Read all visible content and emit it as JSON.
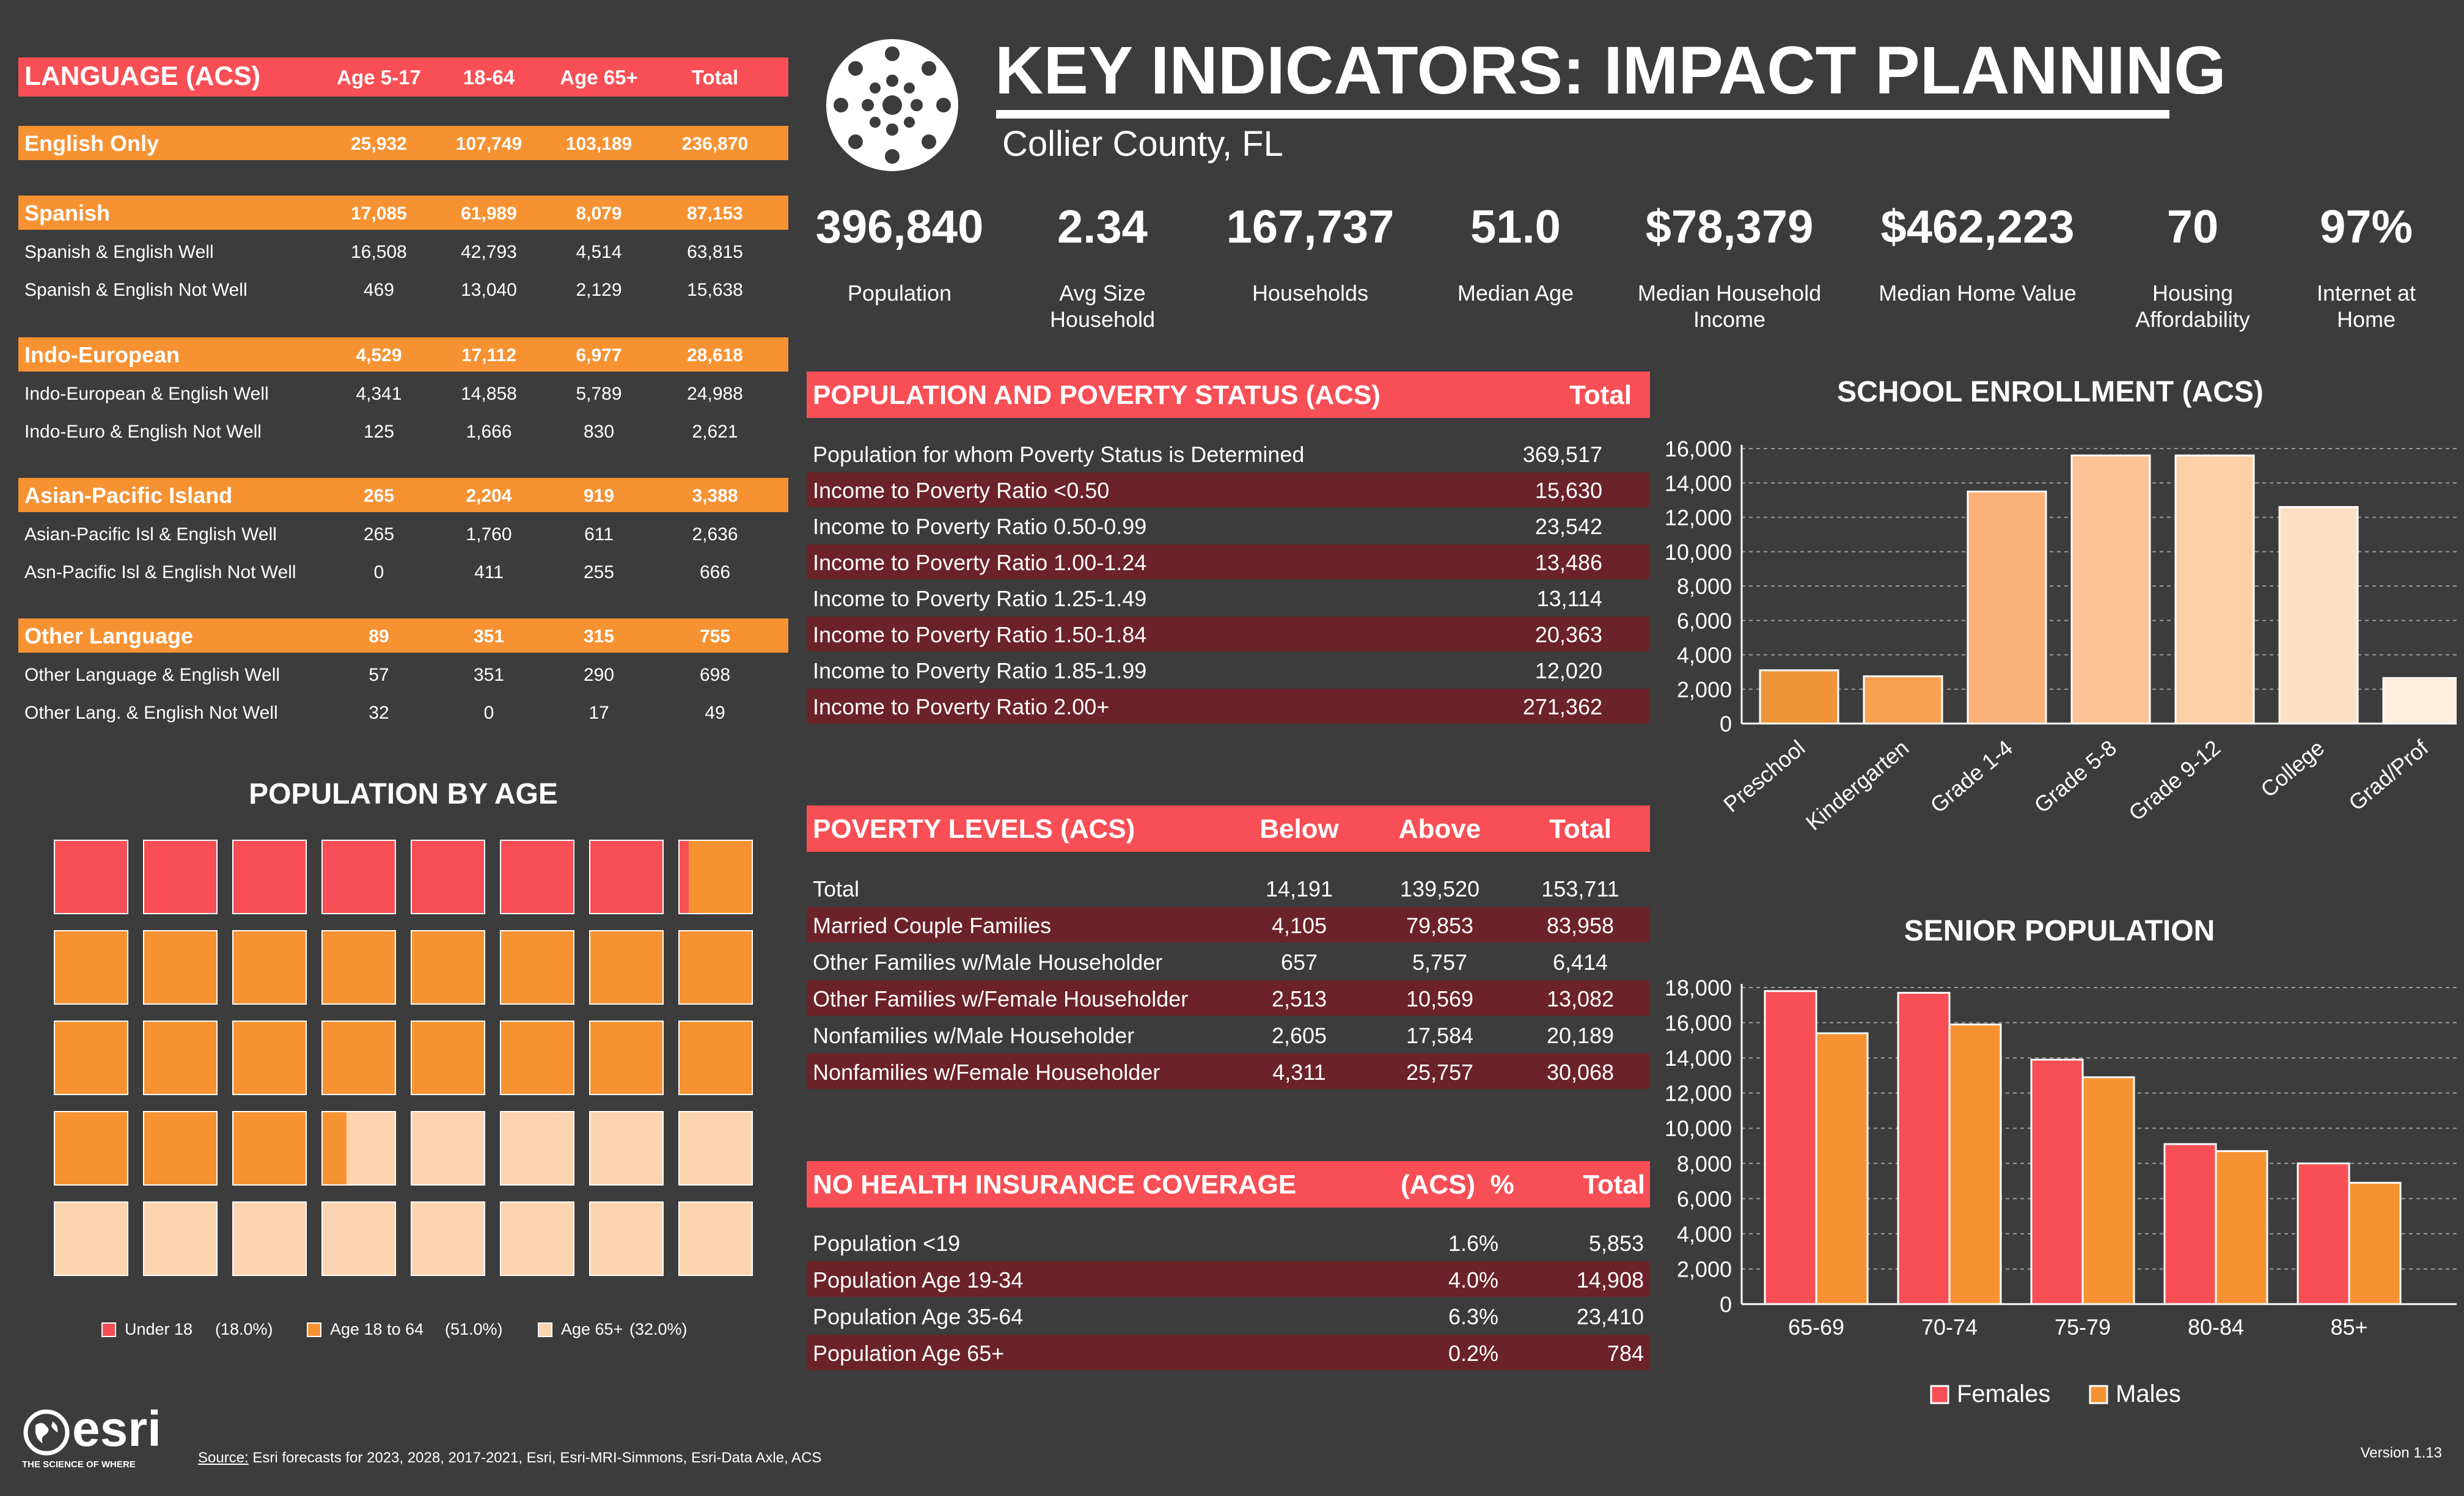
{
  "colors": {
    "red": "#f74f55",
    "orange": "#f79232",
    "peach": "#fdd4b0",
    "dark_red": "#6b2228",
    "bg": "#3c3c3c"
  },
  "title": "KEY INDICATORS: IMPACT PLANNING",
  "location": "Collier County, FL",
  "logo_icon": "virus-icon",
  "kpis": [
    {
      "value": "396,840",
      "label": "Population"
    },
    {
      "value": "2.34",
      "label": "Avg Size\nHousehold"
    },
    {
      "value": "167,737",
      "label": "Households"
    },
    {
      "value": "51.0",
      "label": "Median Age"
    },
    {
      "value": "$78,379",
      "label": "Median Household\nIncome"
    },
    {
      "value": "$462,223",
      "label": "Median Home Value"
    },
    {
      "value": "70",
      "label": "Housing\nAffordability"
    },
    {
      "value": "97%",
      "label": "Internet at\nHome"
    }
  ],
  "language": {
    "title": "LANGUAGE (ACS)",
    "columns": [
      "Age 5-17",
      "18-64",
      "Age 65+",
      "Total"
    ],
    "groups": [
      {
        "name": "English Only",
        "values": [
          "25,932",
          "107,749",
          "103,189",
          "236,870"
        ],
        "rows": []
      },
      {
        "name": "Spanish",
        "values": [
          "17,085",
          "61,989",
          "8,079",
          "87,153"
        ],
        "rows": [
          {
            "name": "Spanish & English Well",
            "values": [
              "16,508",
              "42,793",
              "4,514",
              "63,815"
            ]
          },
          {
            "name": "Spanish & English Not Well",
            "values": [
              "469",
              "13,040",
              "2,129",
              "15,638"
            ]
          }
        ]
      },
      {
        "name": "Indo-European",
        "values": [
          "4,529",
          "17,112",
          "6,977",
          "28,618"
        ],
        "rows": [
          {
            "name": "Indo-European & English Well",
            "values": [
              "4,341",
              "14,858",
              "5,789",
              "24,988"
            ]
          },
          {
            "name": "Indo-Euro & English Not Well",
            "values": [
              "125",
              "1,666",
              "830",
              "2,621"
            ]
          }
        ]
      },
      {
        "name": "Asian-Pacific Island",
        "values": [
          "265",
          "2,204",
          "919",
          "3,388"
        ],
        "rows": [
          {
            "name": "Asian-Pacific Isl & English Well",
            "values": [
              "265",
              "1,760",
              "611",
              "2,636"
            ]
          },
          {
            "name": "Asn-Pacific Isl & English Not Well",
            "values": [
              "0",
              "411",
              "255",
              "666"
            ]
          }
        ]
      },
      {
        "name": "Other Language",
        "values": [
          "89",
          "351",
          "315",
          "755"
        ],
        "rows": [
          {
            "name": "Other Language & English Well",
            "values": [
              "57",
              "351",
              "290",
              "698"
            ]
          },
          {
            "name": "Other Lang. & English Not Well",
            "values": [
              "32",
              "0",
              "17",
              "49"
            ]
          }
        ]
      }
    ]
  },
  "population_by_age": {
    "title": "POPULATION BY AGE",
    "legend": [
      {
        "label": "Under 18",
        "pct": "(18.0%)",
        "value": 18.0,
        "color": "#f74f55"
      },
      {
        "label": "Age 18 to 64",
        "pct": "(51.0%)",
        "value": 51.0,
        "color": "#f79232"
      },
      {
        "label": "Age 65+",
        "pct": "(32.0%)",
        "value": 32.0,
        "color": "#fdd4b0"
      }
    ]
  },
  "poverty_status": {
    "title": "POPULATION AND POVERTY STATUS (ACS)",
    "total_label": "Total",
    "rows": [
      {
        "label": "Population for whom Poverty Status is Determined",
        "value": "369,517"
      },
      {
        "label": "Income to Poverty Ratio <0.50",
        "value": "15,630"
      },
      {
        "label": "Income to Poverty Ratio 0.50-0.99",
        "value": "23,542"
      },
      {
        "label": "Income to Poverty Ratio 1.00-1.24",
        "value": "13,486"
      },
      {
        "label": "Income to Poverty Ratio 1.25-1.49",
        "value": "13,114"
      },
      {
        "label": "Income to Poverty Ratio 1.50-1.84",
        "value": "20,363"
      },
      {
        "label": "Income to Poverty Ratio 1.85-1.99",
        "value": "12,020"
      },
      {
        "label": "Income to Poverty Ratio 2.00+",
        "value": "271,362"
      }
    ]
  },
  "poverty_levels": {
    "title": "POVERTY LEVELS (ACS)",
    "columns": [
      "Below",
      "Above",
      "Total"
    ],
    "rows": [
      {
        "label": "Total",
        "values": [
          "14,191",
          "139,520",
          "153,711"
        ]
      },
      {
        "label": "Married Couple Families",
        "values": [
          "4,105",
          "79,853",
          "83,958"
        ]
      },
      {
        "label": "Other Families w/Male Householder",
        "values": [
          "657",
          "5,757",
          "6,414"
        ]
      },
      {
        "label": "Other Families w/Female Householder",
        "values": [
          "2,513",
          "10,569",
          "13,082"
        ]
      },
      {
        "label": "Nonfamilies w/Male Householder",
        "values": [
          "2,605",
          "17,584",
          "20,189"
        ]
      },
      {
        "label": "Nonfamilies w/Female Householder",
        "values": [
          "4,311",
          "25,757",
          "30,068"
        ]
      }
    ]
  },
  "health_insurance": {
    "title": "NO HEALTH INSURANCE COVERAGE",
    "pct_label": "(ACS)  %",
    "total_label": "Total",
    "rows": [
      {
        "label": "Population <19",
        "pct": "1.6%",
        "value": "5,853"
      },
      {
        "label": "Population Age 19-34",
        "pct": "4.0%",
        "value": "14,908"
      },
      {
        "label": "Population Age 35-64",
        "pct": "6.3%",
        "value": "23,410"
      },
      {
        "label": "Population Age 65+",
        "pct": "0.2%",
        "value": "784"
      }
    ]
  },
  "chart_data": [
    {
      "type": "bar",
      "title": "SCHOOL ENROLLMENT (ACS)",
      "categories": [
        "Preschool",
        "Kindergarten",
        "Grade 1-4",
        "Grade 5-8",
        "Grade 9-12",
        "College",
        "Grad/Prof"
      ],
      "values": [
        3100,
        2750,
        13500,
        15600,
        15600,
        12600,
        2650
      ],
      "colors": [
        "#f0943a",
        "#f6a152",
        "#fab077",
        "#fcc496",
        "#fdd0a8",
        "#fde0c4",
        "#fdeede"
      ],
      "ylim": [
        0,
        16000
      ],
      "yticks": [
        0,
        2000,
        4000,
        6000,
        8000,
        10000,
        12000,
        14000,
        16000
      ],
      "grid": true
    },
    {
      "type": "bar",
      "title": "SENIOR POPULATION",
      "categories": [
        "65-69",
        "70-74",
        "75-79",
        "80-84",
        "85+"
      ],
      "series": [
        {
          "name": "Females",
          "values": [
            17800,
            17700,
            13900,
            9100,
            8000
          ],
          "color": "#f74f55"
        },
        {
          "name": "Males",
          "values": [
            15400,
            15900,
            12900,
            8700,
            6900
          ],
          "color": "#f79232"
        }
      ],
      "ylim": [
        0,
        18000
      ],
      "yticks": [
        0,
        2000,
        4000,
        6000,
        8000,
        10000,
        12000,
        14000,
        16000,
        18000
      ],
      "legend": "bottom",
      "grid": true
    }
  ],
  "footer": {
    "brand": "esri",
    "tagline": "THE SCIENCE OF WHERE",
    "source_label": "Source:",
    "source_text": " Esri forecasts for 2023, 2028, 2017-2021, Esri, Esri-MRI-Simmons, Esri-Data Axle, ACS",
    "version": "Version 1.13"
  }
}
